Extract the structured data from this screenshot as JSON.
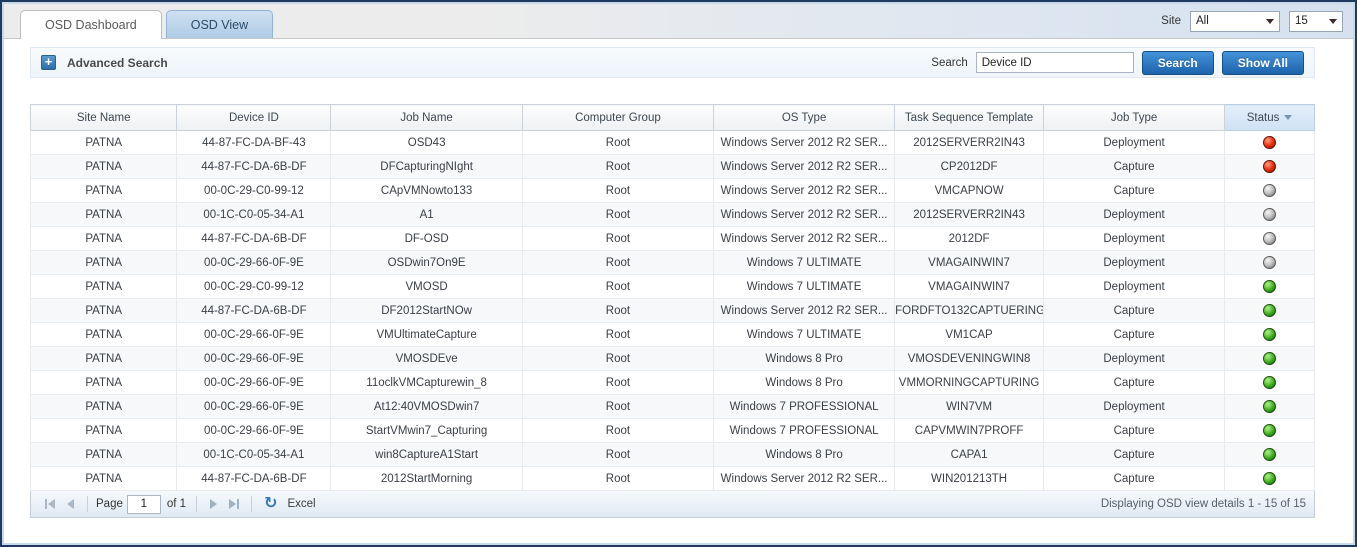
{
  "window": {
    "tabs": [
      {
        "label": "OSD Dashboard",
        "active": true
      },
      {
        "label": "OSD View",
        "active": false
      }
    ],
    "site_label": "Site",
    "site_selected": "All",
    "page_size_selected": "15"
  },
  "toolbar": {
    "advanced_search_label": "Advanced Search",
    "search_label": "Search",
    "search_value": "Device ID",
    "search_button_label": "Search",
    "show_all_button_label": "Show All"
  },
  "table": {
    "columns": [
      "Site Name",
      "Device ID",
      "Job Name",
      "Computer Group",
      "OS Type",
      "Task Sequence Template",
      "Job Type",
      "Status"
    ],
    "sorted_column_index": 7,
    "rows": [
      {
        "site": "PATNA",
        "device_id": "44-87-FC-DA-BF-43",
        "job_name": "OSD43",
        "computer_group": "Root",
        "os_type": "Windows Server 2012 R2 SER...",
        "template": "2012SERVERR2IN43",
        "job_type": "Deployment",
        "status": "red"
      },
      {
        "site": "PATNA",
        "device_id": "44-87-FC-DA-6B-DF",
        "job_name": "DFCapturingNIght",
        "computer_group": "Root",
        "os_type": "Windows Server 2012 R2 SER...",
        "template": "CP2012DF",
        "job_type": "Capture",
        "status": "red"
      },
      {
        "site": "PATNA",
        "device_id": "00-0C-29-C0-99-12",
        "job_name": "CApVMNowto133",
        "computer_group": "Root",
        "os_type": "Windows Server 2012 R2 SER...",
        "template": "VMCAPNOW",
        "job_type": "Capture",
        "status": "gray"
      },
      {
        "site": "PATNA",
        "device_id": "00-1C-C0-05-34-A1",
        "job_name": "A1",
        "computer_group": "Root",
        "os_type": "Windows Server 2012 R2 SER...",
        "template": "2012SERVERR2IN43",
        "job_type": "Deployment",
        "status": "gray"
      },
      {
        "site": "PATNA",
        "device_id": "44-87-FC-DA-6B-DF",
        "job_name": "DF-OSD",
        "computer_group": "Root",
        "os_type": "Windows Server 2012 R2 SER...",
        "template": "2012DF",
        "job_type": "Deployment",
        "status": "gray"
      },
      {
        "site": "PATNA",
        "device_id": "00-0C-29-66-0F-9E",
        "job_name": "OSDwin7On9E",
        "computer_group": "Root",
        "os_type": "Windows 7 ULTIMATE",
        "template": "VMAGAINWIN7",
        "job_type": "Deployment",
        "status": "gray"
      },
      {
        "site": "PATNA",
        "device_id": "00-0C-29-C0-99-12",
        "job_name": "VMOSD",
        "computer_group": "Root",
        "os_type": "Windows 7 ULTIMATE",
        "template": "VMAGAINWIN7",
        "job_type": "Deployment",
        "status": "green"
      },
      {
        "site": "PATNA",
        "device_id": "44-87-FC-DA-6B-DF",
        "job_name": "DF2012StartNOw",
        "computer_group": "Root",
        "os_type": "Windows Server 2012 R2 SER...",
        "template": "FORDFTO132CAPTUERING",
        "job_type": "Capture",
        "status": "green"
      },
      {
        "site": "PATNA",
        "device_id": "00-0C-29-66-0F-9E",
        "job_name": "VMUltimateCapture",
        "computer_group": "Root",
        "os_type": "Windows 7 ULTIMATE",
        "template": "VM1CAP",
        "job_type": "Capture",
        "status": "green"
      },
      {
        "site": "PATNA",
        "device_id": "00-0C-29-66-0F-9E",
        "job_name": "VMOSDEve",
        "computer_group": "Root",
        "os_type": "Windows 8 Pro",
        "template": "VMOSDEVENINGWIN8",
        "job_type": "Deployment",
        "status": "green"
      },
      {
        "site": "PATNA",
        "device_id": "00-0C-29-66-0F-9E",
        "job_name": "11oclkVMCapturewin_8",
        "computer_group": "Root",
        "os_type": "Windows 8 Pro",
        "template": "VMMORNINGCAPTURING",
        "job_type": "Capture",
        "status": "green"
      },
      {
        "site": "PATNA",
        "device_id": "00-0C-29-66-0F-9E",
        "job_name": "At12:40VMOSDwin7",
        "computer_group": "Root",
        "os_type": "Windows 7 PROFESSIONAL",
        "template": "WIN7VM",
        "job_type": "Deployment",
        "status": "green"
      },
      {
        "site": "PATNA",
        "device_id": "00-0C-29-66-0F-9E",
        "job_name": "StartVMwin7_Capturing",
        "computer_group": "Root",
        "os_type": "Windows 7 PROFESSIONAL",
        "template": "CAPVMWIN7PROFF",
        "job_type": "Capture",
        "status": "green"
      },
      {
        "site": "PATNA",
        "device_id": "00-1C-C0-05-34-A1",
        "job_name": "win8CaptureA1Start",
        "computer_group": "Root",
        "os_type": "Windows 8 Pro",
        "template": "CAPA1",
        "job_type": "Capture",
        "status": "green"
      },
      {
        "site": "PATNA",
        "device_id": "44-87-FC-DA-6B-DF",
        "job_name": "2012StartMorning",
        "computer_group": "Root",
        "os_type": "Windows Server 2012 R2 SER...",
        "template": "WIN201213TH",
        "job_type": "Capture",
        "status": "green"
      }
    ]
  },
  "pager": {
    "page_label": "Page",
    "page_value": "1",
    "of_label": "of 1",
    "excel_label": "Excel",
    "status_text": "Displaying OSD view details 1 - 15 of 15"
  },
  "colors": {
    "accent_blue": "#1c62ab",
    "frame_navy": "#1e3a61",
    "tab_inactive_blue": "#aecbe6",
    "sorted_header_blue": "#cfe1f4"
  },
  "status_styles": {
    "red": {
      "hi": "#ff9d82",
      "mid": "#e93312",
      "lo": "#8c1200",
      "border": "#601608"
    },
    "gray": {
      "hi": "#f5f5f5",
      "mid": "#bfbfbf",
      "lo": "#6f6f6f",
      "border": "#5c5c5c"
    },
    "green": {
      "hi": "#b4ee94",
      "mid": "#46b424",
      "lo": "#176607",
      "border": "#1c5410"
    }
  }
}
